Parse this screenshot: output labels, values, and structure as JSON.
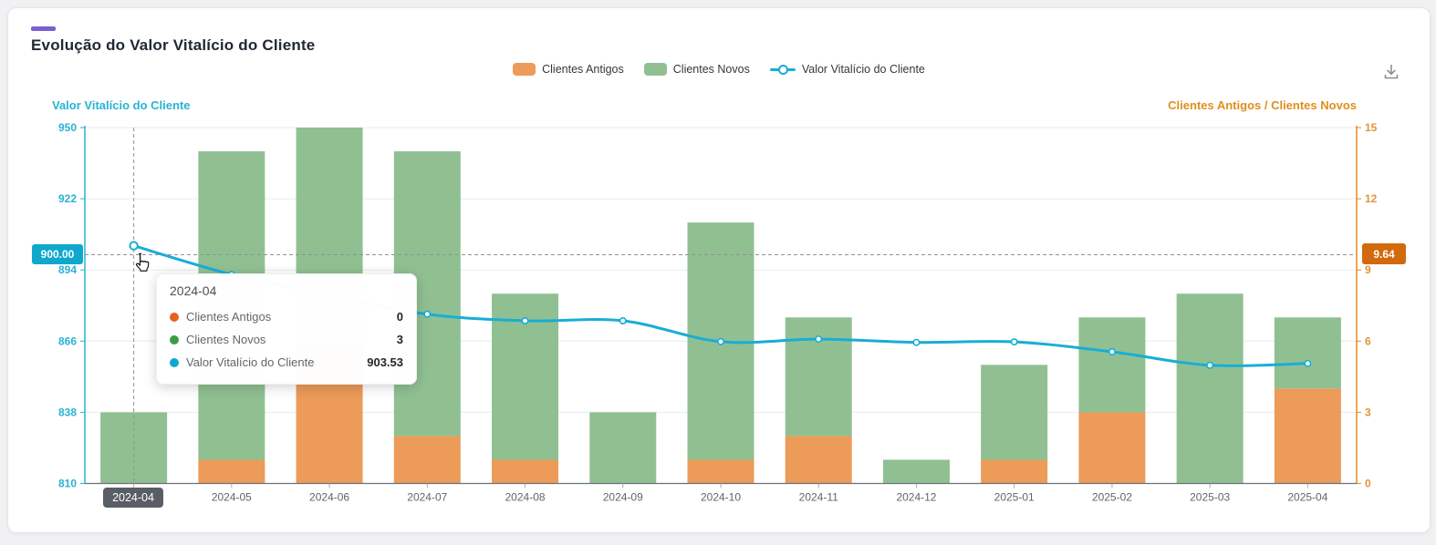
{
  "header": {
    "title": "Evolução do Valor Vitalício do Cliente",
    "accent_color": "#7c5fd3"
  },
  "icons": {
    "download": "tray-arrow-down",
    "cursor": "hand-pointer"
  },
  "legend": {
    "items": [
      {
        "label": "Clientes Antigos",
        "color": "#ec9b58",
        "symbol": "rect"
      },
      {
        "label": "Clientes Novos",
        "color": "#90c092",
        "symbol": "rect"
      },
      {
        "label": "Valor Vitalício do Cliente",
        "color": "#19add6",
        "symbol": "line"
      }
    ]
  },
  "left_axis": {
    "title": "Valor Vitalício do Cliente",
    "color": "#29b3d4",
    "ticks": [
      "950",
      "922",
      "894",
      "866",
      "838",
      "810"
    ]
  },
  "right_axis": {
    "title": "Clientes Antigos / Clientes Novos",
    "color": "#e0953a",
    "line_color": "#e78a1f",
    "ticks": [
      "15",
      "12",
      "9",
      "6",
      "3",
      "0"
    ]
  },
  "x_axis": {
    "labels": [
      "2024-04",
      "2024-05",
      "2024-06",
      "2024-07",
      "2024-08",
      "2024-09",
      "2024-10",
      "2024-11",
      "2024-12",
      "2025-01",
      "2025-02",
      "2025-03",
      "2025-04"
    ],
    "label_color": "#61656c",
    "line_color": "#6e7079"
  },
  "axis_pointer": {
    "left_value": "900.00",
    "right_value": "9.64",
    "x_value": "2024-04",
    "left_bg": "#0fa8cd",
    "right_bg": "#d2690d",
    "x_bg": "#595e66"
  },
  "tooltip": {
    "title": "2024-04",
    "rows": [
      {
        "label": "Clientes Antigos",
        "value": "0",
        "color": "#e2641c"
      },
      {
        "label": "Clientes Novos",
        "value": "3",
        "color": "#3f9a44"
      },
      {
        "label": "Valor Vitalício do Cliente",
        "value": "903.53",
        "color": "#0fa8ce"
      }
    ]
  },
  "chart_data": {
    "type": "mixed",
    "title": "Evolução do Valor Vitalício do Cliente",
    "categories": [
      "2024-04",
      "2024-05",
      "2024-06",
      "2024-07",
      "2024-08",
      "2024-09",
      "2024-10",
      "2024-11",
      "2024-12",
      "2025-01",
      "2025-02",
      "2025-03",
      "2025-04"
    ],
    "series": [
      {
        "name": "Clientes Antigos",
        "type": "bar",
        "stack": "clientes",
        "yaxis": "right",
        "color": "#ec9b58",
        "values": [
          0,
          1,
          6,
          2,
          1,
          0,
          1,
          2,
          0,
          1,
          3,
          0,
          4
        ]
      },
      {
        "name": "Clientes Novos",
        "type": "bar",
        "stack": "clientes",
        "yaxis": "right",
        "color": "#90c092",
        "values": [
          3,
          13,
          9,
          12,
          7,
          3,
          10,
          5,
          1,
          4,
          4,
          8,
          3
        ]
      },
      {
        "name": "Valor Vitalício do Cliente",
        "type": "line",
        "yaxis": "left",
        "color": "#19add6",
        "values": [
          903.53,
          892.2,
          884.0,
          876.6,
          874.0,
          874.0,
          865.8,
          866.8,
          865.5,
          865.7,
          861.8,
          856.5,
          857.2
        ]
      }
    ],
    "y_left": {
      "label": "Valor Vitalício do Cliente",
      "lim": [
        810,
        950
      ],
      "ticks": [
        810,
        838,
        866,
        894,
        922,
        950
      ]
    },
    "y_right": {
      "label": "Clientes Antigos / Clientes Novos",
      "lim": [
        0,
        15
      ],
      "ticks": [
        0,
        3,
        6,
        9,
        12,
        15
      ]
    },
    "legend_position": "top",
    "grid": true,
    "pointer": {
      "month_index": 0,
      "left_value": 900.0,
      "right_value": 9.64
    }
  }
}
